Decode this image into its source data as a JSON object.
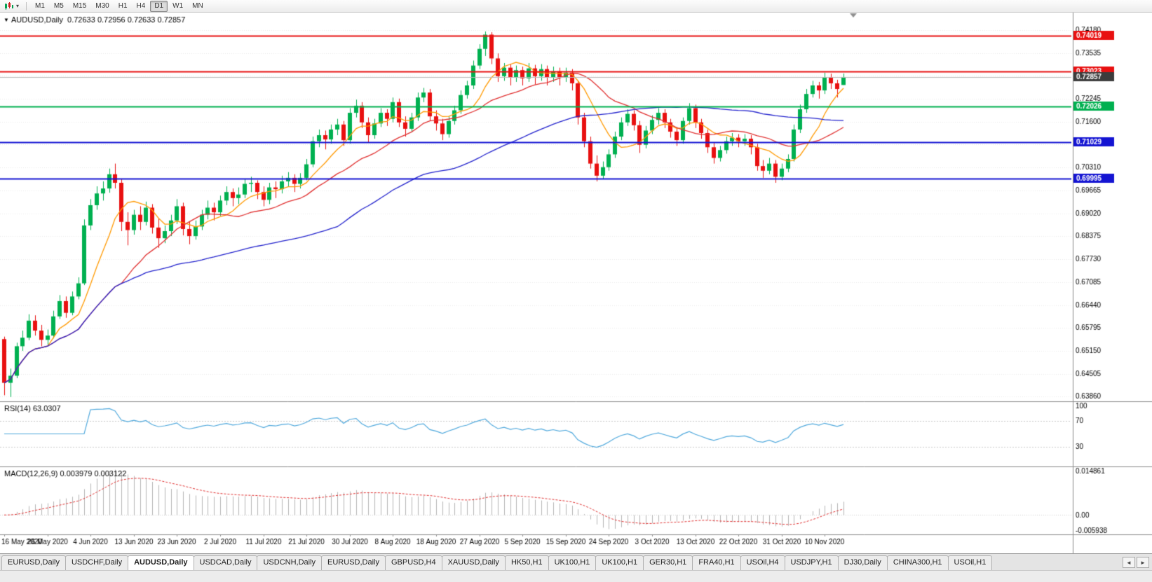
{
  "ui": {
    "toolbar": {
      "timeframes": [
        "M1",
        "M5",
        "M15",
        "M30",
        "H1",
        "H4",
        "D1",
        "W1",
        "MN"
      ],
      "active_timeframe": "D1"
    },
    "icons": {
      "chart_dropdown": "▾"
    },
    "tabs": {
      "items": [
        "EURUSD,Daily",
        "USDCHF,Daily",
        "AUDUSD,Daily",
        "USDCAD,Daily",
        "USDCNH,Daily",
        "EURUSD,Daily",
        "GBPUSD,H4",
        "XAUUSD,Daily",
        "HK50,H1",
        "UK100,H1",
        "UK100,H1",
        "GER30,H1",
        "FRA40,H1",
        "USOil,H4",
        "USDJPY,H1",
        "DJ30,Daily",
        "CHINA300,H1",
        "USOil,H1"
      ],
      "active_index": 2,
      "scroll_left": "◄",
      "scroll_right": "►"
    }
  },
  "chart_data": {
    "type": "candlestick",
    "symbol": "AUDUSD",
    "timeframe": "Daily",
    "title": "AUDUSD,Daily  0.72633 0.72956 0.72633 0.72857",
    "title_marker": "▼",
    "current_ohlc": {
      "open": 0.72633,
      "high": 0.72956,
      "low": 0.72633,
      "close": 0.72857
    },
    "up_color": "#00b050",
    "down_color": "#e81010",
    "y_range": [
      0.6373,
      0.7467
    ],
    "y_ticks": [
      0.7418,
      0.73535,
      0.7289,
      0.72245,
      0.716,
      0.70955,
      0.7031,
      0.69665,
      0.6902,
      0.68375,
      0.6773,
      0.67085,
      0.6644,
      0.65795,
      0.6515,
      0.64505,
      0.6386
    ],
    "x_tick_labels": [
      "16 May 2020",
      "26 May 2020",
      "4 Jun 2020",
      "13 Jun 2020",
      "23 Jun 2020",
      "2 Jul 2020",
      "11 Jul 2020",
      "21 Jul 2020",
      "30 Jul 2020",
      "8 Aug 2020",
      "18 Aug 2020",
      "27 Aug 2020",
      "5 Sep 2020",
      "15 Sep 2020",
      "24 Sep 2020",
      "3 Oct 2020",
      "13 Oct 2020",
      "22 Oct 2020",
      "31 Oct 2020",
      "10 Nov 2020"
    ],
    "x_tick_indices": [
      0,
      7,
      14,
      21,
      28,
      35,
      42,
      49,
      56,
      63,
      70,
      77,
      84,
      91,
      98,
      105,
      112,
      119,
      126,
      133
    ],
    "hlines": [
      {
        "value": 0.74019,
        "color": "#e81010",
        "width": 2
      },
      {
        "value": 0.73023,
        "color": "#e81010",
        "width": 2
      },
      {
        "value": 0.72026,
        "color": "#00b050",
        "width": 2
      },
      {
        "value": 0.71029,
        "color": "#1414d2",
        "width": 2
      },
      {
        "value": 0.69995,
        "color": "#1414d2",
        "width": 2
      }
    ],
    "bid_line": {
      "value": 0.72857,
      "line_color": "#b9b9b9",
      "badge_color": "#3c3c3c"
    },
    "overlays": [
      {
        "name": "ma-fast",
        "type": "sma",
        "period": 8,
        "color": "#ff9900"
      },
      {
        "name": "ma-medium",
        "type": "sma",
        "period": 20,
        "color": "#e03030"
      },
      {
        "name": "ma-slow",
        "type": "sma",
        "period": 55,
        "color": "#2222cc"
      }
    ],
    "rsi_panel": {
      "label": "RSI(14) 63.0307",
      "period": 14,
      "current": 63.0307,
      "color": "#4fa8dc",
      "levels": [
        100,
        70,
        30
      ]
    },
    "macd_panel": {
      "label": "MACD(12,26,9) 0.003979 0.003122",
      "fast": 12,
      "slow": 26,
      "signal_period": 9,
      "current_macd": 0.003979,
      "current_signal": 0.003122,
      "hist_color": "#b4b4b4",
      "signal_color": "#e03030",
      "scale": {
        "max": 0.014861,
        "min": -0.005938,
        "labels": [
          "0.014861",
          "0.00",
          "-0.005938"
        ]
      }
    },
    "candles": [
      [
        0.6548,
        0.6555,
        0.639,
        0.6425
      ],
      [
        0.6425,
        0.6465,
        0.6385,
        0.6445
      ],
      [
        0.6445,
        0.6538,
        0.6438,
        0.6528
      ],
      [
        0.6528,
        0.6572,
        0.6515,
        0.6552
      ],
      [
        0.6552,
        0.6618,
        0.6545,
        0.66
      ],
      [
        0.66,
        0.6615,
        0.6558,
        0.6572
      ],
      [
        0.6572,
        0.6588,
        0.6528,
        0.6546
      ],
      [
        0.6546,
        0.6575,
        0.6532,
        0.6558
      ],
      [
        0.6558,
        0.6628,
        0.655,
        0.6612
      ],
      [
        0.6612,
        0.6672,
        0.6605,
        0.6655
      ],
      [
        0.6655,
        0.6668,
        0.6608,
        0.6622
      ],
      [
        0.6622,
        0.6682,
        0.6615,
        0.6668
      ],
      [
        0.6668,
        0.6722,
        0.666,
        0.6705
      ],
      [
        0.6705,
        0.6885,
        0.67,
        0.6868
      ],
      [
        0.6868,
        0.6942,
        0.6855,
        0.6925
      ],
      [
        0.6925,
        0.6978,
        0.6912,
        0.6958
      ],
      [
        0.6958,
        0.6992,
        0.6938,
        0.6972
      ],
      [
        0.6972,
        0.7028,
        0.696,
        0.7012
      ],
      [
        0.7012,
        0.7042,
        0.6972,
        0.6988
      ],
      [
        0.6988,
        0.6998,
        0.6852,
        0.6878
      ],
      [
        0.6878,
        0.6905,
        0.6812,
        0.6855
      ],
      [
        0.6855,
        0.6912,
        0.6842,
        0.6898
      ],
      [
        0.6898,
        0.6922,
        0.6855,
        0.6878
      ],
      [
        0.6878,
        0.6935,
        0.6868,
        0.6918
      ],
      [
        0.6918,
        0.6928,
        0.6845,
        0.6862
      ],
      [
        0.6862,
        0.6888,
        0.6805,
        0.6832
      ],
      [
        0.6832,
        0.6868,
        0.6818,
        0.6852
      ],
      [
        0.6852,
        0.6898,
        0.6838,
        0.6882
      ],
      [
        0.6882,
        0.6942,
        0.6872,
        0.6922
      ],
      [
        0.6922,
        0.6932,
        0.684,
        0.6858
      ],
      [
        0.6858,
        0.6878,
        0.6815,
        0.6838
      ],
      [
        0.6838,
        0.6882,
        0.6828,
        0.6865
      ],
      [
        0.6865,
        0.6912,
        0.6855,
        0.6898
      ],
      [
        0.6898,
        0.6938,
        0.6885,
        0.6918
      ],
      [
        0.6918,
        0.6932,
        0.6882,
        0.6905
      ],
      [
        0.6905,
        0.6952,
        0.6895,
        0.6938
      ],
      [
        0.6938,
        0.6978,
        0.6925,
        0.6962
      ],
      [
        0.6962,
        0.6972,
        0.6922,
        0.6945
      ],
      [
        0.6945,
        0.6975,
        0.6928,
        0.6955
      ],
      [
        0.6955,
        0.6998,
        0.6945,
        0.6985
      ],
      [
        0.6985,
        0.7005,
        0.6962,
        0.6988
      ],
      [
        0.6988,
        0.6995,
        0.6942,
        0.6962
      ],
      [
        0.6962,
        0.6978,
        0.6922,
        0.694
      ],
      [
        0.694,
        0.6988,
        0.6928,
        0.6975
      ],
      [
        0.6975,
        0.6992,
        0.6945,
        0.697
      ],
      [
        0.697,
        0.7008,
        0.6958,
        0.6992
      ],
      [
        0.6992,
        0.7018,
        0.6978,
        0.7002
      ],
      [
        0.7002,
        0.7012,
        0.6962,
        0.6985
      ],
      [
        0.6985,
        0.7015,
        0.6972,
        0.7002
      ],
      [
        0.7002,
        0.7055,
        0.6995,
        0.704
      ],
      [
        0.704,
        0.7118,
        0.7032,
        0.7105
      ],
      [
        0.7105,
        0.7138,
        0.7088,
        0.7122
      ],
      [
        0.7122,
        0.7135,
        0.7082,
        0.711
      ],
      [
        0.711,
        0.7152,
        0.7098,
        0.7138
      ],
      [
        0.7138,
        0.7168,
        0.7122,
        0.7152
      ],
      [
        0.7152,
        0.7162,
        0.7092,
        0.7108
      ],
      [
        0.7108,
        0.7198,
        0.7098,
        0.7185
      ],
      [
        0.7185,
        0.7222,
        0.7172,
        0.7205
      ],
      [
        0.7205,
        0.7215,
        0.7142,
        0.7158
      ],
      [
        0.7158,
        0.7172,
        0.7102,
        0.7122
      ],
      [
        0.7122,
        0.7168,
        0.7112,
        0.7155
      ],
      [
        0.7155,
        0.7198,
        0.7145,
        0.7185
      ],
      [
        0.7185,
        0.7195,
        0.7148,
        0.7168
      ],
      [
        0.7168,
        0.7228,
        0.7158,
        0.7215
      ],
      [
        0.7215,
        0.7225,
        0.7145,
        0.7158
      ],
      [
        0.7158,
        0.7175,
        0.7118,
        0.714
      ],
      [
        0.714,
        0.7185,
        0.713,
        0.7172
      ],
      [
        0.7172,
        0.7242,
        0.7162,
        0.7228
      ],
      [
        0.7228,
        0.7255,
        0.7215,
        0.7242
      ],
      [
        0.7242,
        0.7252,
        0.7162,
        0.7175
      ],
      [
        0.7175,
        0.7192,
        0.7135,
        0.7155
      ],
      [
        0.7155,
        0.7168,
        0.7108,
        0.7125
      ],
      [
        0.7125,
        0.7175,
        0.7115,
        0.7162
      ],
      [
        0.7162,
        0.7205,
        0.7152,
        0.7192
      ],
      [
        0.7192,
        0.7248,
        0.7182,
        0.7235
      ],
      [
        0.7235,
        0.7275,
        0.7225,
        0.7262
      ],
      [
        0.7262,
        0.7332,
        0.7252,
        0.7318
      ],
      [
        0.7318,
        0.7378,
        0.7308,
        0.7365
      ],
      [
        0.7365,
        0.7414,
        0.7345,
        0.7405
      ],
      [
        0.7405,
        0.7412,
        0.7322,
        0.7338
      ],
      [
        0.7338,
        0.7352,
        0.7272,
        0.7288
      ],
      [
        0.7288,
        0.7325,
        0.7275,
        0.7312
      ],
      [
        0.7312,
        0.7322,
        0.7262,
        0.7285
      ],
      [
        0.7285,
        0.7318,
        0.7272,
        0.7305
      ],
      [
        0.7305,
        0.7315,
        0.7262,
        0.7282
      ],
      [
        0.7282,
        0.7325,
        0.7272,
        0.731
      ],
      [
        0.731,
        0.732,
        0.7265,
        0.7288
      ],
      [
        0.7288,
        0.7322,
        0.7275,
        0.7308
      ],
      [
        0.7308,
        0.7318,
        0.7262,
        0.7285
      ],
      [
        0.7285,
        0.7315,
        0.7272,
        0.7302
      ],
      [
        0.7302,
        0.7312,
        0.7262,
        0.7285
      ],
      [
        0.7285,
        0.7312,
        0.7272,
        0.7298
      ],
      [
        0.7298,
        0.7308,
        0.7248,
        0.7268
      ],
      [
        0.7268,
        0.7275,
        0.7152,
        0.7172
      ],
      [
        0.7172,
        0.7185,
        0.7088,
        0.7105
      ],
      [
        0.7105,
        0.7118,
        0.7028,
        0.7042
      ],
      [
        0.7042,
        0.7065,
        0.6992,
        0.7008
      ],
      [
        0.7008,
        0.7048,
        0.6998,
        0.7032
      ],
      [
        0.7032,
        0.7082,
        0.7022,
        0.7068
      ],
      [
        0.7068,
        0.7132,
        0.7058,
        0.7118
      ],
      [
        0.7118,
        0.7172,
        0.7108,
        0.7158
      ],
      [
        0.7158,
        0.7195,
        0.7148,
        0.7182
      ],
      [
        0.7182,
        0.7192,
        0.7135,
        0.715
      ],
      [
        0.715,
        0.7162,
        0.7072,
        0.7095
      ],
      [
        0.7095,
        0.7148,
        0.7085,
        0.7135
      ],
      [
        0.7135,
        0.7178,
        0.7125,
        0.7165
      ],
      [
        0.7165,
        0.7198,
        0.7152,
        0.7185
      ],
      [
        0.7185,
        0.7195,
        0.7142,
        0.7158
      ],
      [
        0.7158,
        0.7168,
        0.7115,
        0.7132
      ],
      [
        0.7132,
        0.7145,
        0.7092,
        0.7108
      ],
      [
        0.7108,
        0.7172,
        0.7098,
        0.7162
      ],
      [
        0.7162,
        0.7212,
        0.7152,
        0.7198
      ],
      [
        0.7198,
        0.7208,
        0.7142,
        0.7158
      ],
      [
        0.7158,
        0.7168,
        0.7112,
        0.7128
      ],
      [
        0.7128,
        0.7138,
        0.7072,
        0.7088
      ],
      [
        0.7088,
        0.7102,
        0.7042,
        0.7058
      ],
      [
        0.7058,
        0.7092,
        0.7048,
        0.708
      ],
      [
        0.708,
        0.7118,
        0.707,
        0.7105
      ],
      [
        0.7105,
        0.7128,
        0.7092,
        0.7115
      ],
      [
        0.7115,
        0.7125,
        0.7088,
        0.7105
      ],
      [
        0.7105,
        0.7125,
        0.7092,
        0.7112
      ],
      [
        0.7112,
        0.7122,
        0.7068,
        0.7088
      ],
      [
        0.7088,
        0.7098,
        0.7022,
        0.7035
      ],
      [
        0.7035,
        0.7052,
        0.7002,
        0.7022
      ],
      [
        0.7022,
        0.7058,
        0.7012,
        0.7042
      ],
      [
        0.7042,
        0.7052,
        0.6988,
        0.7005
      ],
      [
        0.7005,
        0.7042,
        0.6995,
        0.7028
      ],
      [
        0.7028,
        0.7068,
        0.7018,
        0.7055
      ],
      [
        0.7055,
        0.7152,
        0.7048,
        0.7138
      ],
      [
        0.7138,
        0.7208,
        0.7128,
        0.7195
      ],
      [
        0.7195,
        0.7252,
        0.7185,
        0.7238
      ],
      [
        0.7238,
        0.7275,
        0.7228,
        0.7262
      ],
      [
        0.7262,
        0.7272,
        0.7225,
        0.7248
      ],
      [
        0.7248,
        0.7298,
        0.7238,
        0.7285
      ],
      [
        0.7285,
        0.7295,
        0.7252,
        0.7268
      ],
      [
        0.7268,
        0.7278,
        0.7228,
        0.7252
      ],
      [
        0.72633,
        0.72956,
        0.72633,
        0.72857
      ]
    ]
  }
}
